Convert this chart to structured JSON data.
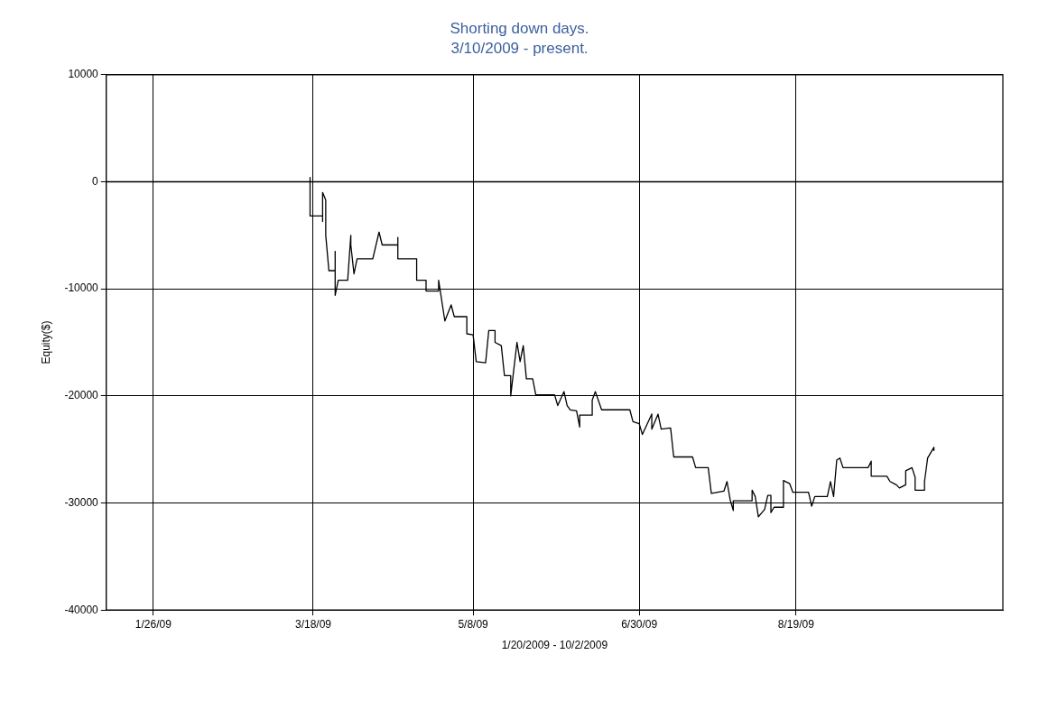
{
  "chart_data": {
    "type": "line",
    "title": "Shorting down days.",
    "subtitle": "3/10/2009 - present.",
    "xlabel": "1/20/2009 - 10/2/2009",
    "ylabel": "Equity($)",
    "xlim": [
      "2009-01-11",
      "2009-10-24"
    ],
    "xticks": [
      {
        "value": "2009-01-26",
        "label": "1/26/09"
      },
      {
        "value": "2009-03-18",
        "label": "3/18/09"
      },
      {
        "value": "2009-05-08",
        "label": "5/8/09"
      },
      {
        "value": "2009-06-30",
        "label": "6/30/09"
      },
      {
        "value": "2009-08-19",
        "label": "8/19/09"
      }
    ],
    "ylim": [
      -40000,
      10000
    ],
    "yticks": [
      -40000,
      -30000,
      -20000,
      -10000,
      0,
      10000
    ],
    "grid": true,
    "legend": false,
    "ref_lines": [
      {
        "axis": "y",
        "value": 0,
        "color": "#000000"
      }
    ],
    "series": [
      {
        "color": "#000000",
        "x": [
          "2009-03-17",
          "2009-03-17",
          "2009-03-17",
          "2009-03-21",
          "2009-03-21",
          "2009-03-21",
          "2009-03-22",
          "2009-03-22",
          "2009-03-23",
          "2009-03-25",
          "2009-03-25",
          "2009-03-25",
          "2009-03-26",
          "2009-03-29",
          "2009-03-30",
          "2009-03-30",
          "2009-03-31",
          "2009-04-01",
          "2009-04-06",
          "2009-04-08",
          "2009-04-09",
          "2009-04-14",
          "2009-04-14",
          "2009-04-14",
          "2009-04-20",
          "2009-04-20",
          "2009-04-23",
          "2009-04-23",
          "2009-04-27",
          "2009-04-27",
          "2009-04-29",
          "2009-05-01",
          "2009-05-02",
          "2009-05-06",
          "2009-05-06",
          "2009-05-08",
          "2009-05-09",
          "2009-05-12",
          "2009-05-13",
          "2009-05-15",
          "2009-05-15",
          "2009-05-17",
          "2009-05-18",
          "2009-05-20",
          "2009-05-20",
          "2009-05-22",
          "2009-05-23",
          "2009-05-24",
          "2009-05-25",
          "2009-05-27",
          "2009-05-28",
          "2009-06-03",
          "2009-06-04",
          "2009-06-06",
          "2009-06-07",
          "2009-06-08",
          "2009-06-10",
          "2009-06-11",
          "2009-06-11",
          "2009-06-15",
          "2009-06-15",
          "2009-06-16",
          "2009-06-18",
          "2009-06-27",
          "2009-06-28",
          "2009-06-30",
          "2009-07-01",
          "2009-07-04",
          "2009-07-04",
          "2009-07-06",
          "2009-07-07",
          "2009-07-10",
          "2009-07-11",
          "2009-07-17",
          "2009-07-18",
          "2009-07-22",
          "2009-07-23",
          "2009-07-27",
          "2009-07-28",
          "2009-07-29",
          "2009-07-30",
          "2009-07-30",
          "2009-08-05",
          "2009-08-05",
          "2009-08-06",
          "2009-08-07",
          "2009-08-09",
          "2009-08-10",
          "2009-08-11",
          "2009-08-11",
          "2009-08-12",
          "2009-08-15",
          "2009-08-15",
          "2009-08-17",
          "2009-08-18",
          "2009-08-23",
          "2009-08-24",
          "2009-08-25",
          "2009-08-29",
          "2009-08-30",
          "2009-08-31",
          "2009-09-01",
          "2009-09-02",
          "2009-09-03",
          "2009-09-11",
          "2009-09-12",
          "2009-09-12",
          "2009-09-17",
          "2009-09-18",
          "2009-09-20",
          "2009-09-21",
          "2009-09-23",
          "2009-09-23",
          "2009-09-25",
          "2009-09-26",
          "2009-09-26",
          "2009-09-29",
          "2009-09-29",
          "2009-09-30",
          "2009-10-02",
          "2009-10-02"
        ],
        "values": [
          0,
          400,
          -3200,
          -3200,
          -3700,
          -1000,
          -1700,
          -5000,
          -8300,
          -8300,
          -6500,
          -10600,
          -9200,
          -9200,
          -5000,
          -5900,
          -8600,
          -7200,
          -7200,
          -4700,
          -5900,
          -5900,
          -5200,
          -7200,
          -7200,
          -9200,
          -9200,
          -10200,
          -10200,
          -9200,
          -13000,
          -11500,
          -12600,
          -12600,
          -14200,
          -14300,
          -16800,
          -16900,
          -13900,
          -13900,
          -15000,
          -15300,
          -18100,
          -18100,
          -20000,
          -15000,
          -16800,
          -15300,
          -18400,
          -18400,
          -19900,
          -19900,
          -20900,
          -19600,
          -20900,
          -21300,
          -21400,
          -22900,
          -21800,
          -21800,
          -20400,
          -19600,
          -21300,
          -21300,
          -22400,
          -22600,
          -23600,
          -21700,
          -23100,
          -21700,
          -23100,
          -23000,
          -25700,
          -25700,
          -26700,
          -26700,
          -29100,
          -28900,
          -28000,
          -29700,
          -30700,
          -29800,
          -29800,
          -28800,
          -29400,
          -31300,
          -30600,
          -29300,
          -29300,
          -30900,
          -30400,
          -30400,
          -27900,
          -28200,
          -29000,
          -29000,
          -30300,
          -29400,
          -29400,
          -28000,
          -29400,
          -26000,
          -25800,
          -26700,
          -26700,
          -26100,
          -27500,
          -27500,
          -28000,
          -28300,
          -28600,
          -28300,
          -27000,
          -26700,
          -27600,
          -28800,
          -28800,
          -28000,
          -25800,
          -24800,
          -25100
        ]
      }
    ]
  }
}
